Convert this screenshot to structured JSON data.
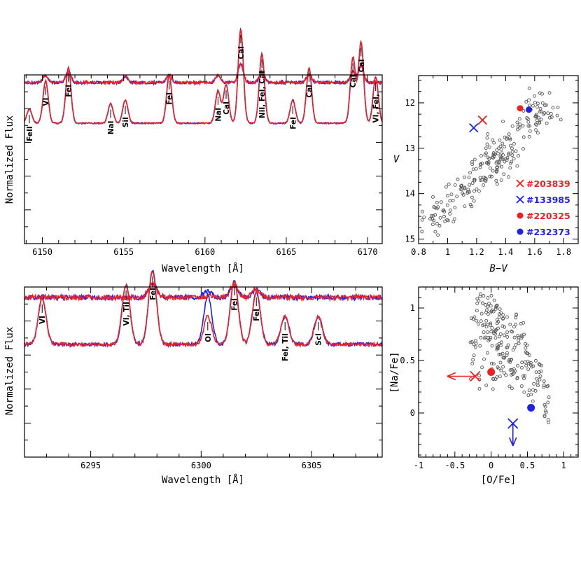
{
  "chart_data": [
    {
      "id": "spectrum-top",
      "type": "line",
      "xlabel": "Wavelength [Å]",
      "ylabel": "Normalized Flux",
      "xlim": [
        6148.9,
        6170.9
      ],
      "xticks": [
        6150,
        6155,
        6160,
        6165,
        6170
      ],
      "series": [
        {
          "color": "#2020ee",
          "role": "spectrum"
        },
        {
          "color": "#ee2020",
          "role": "spectrum"
        }
      ],
      "difference_features": [
        {
          "x": 6150.2,
          "d": 0.35
        },
        {
          "x": 6151.6,
          "d": 0.5
        },
        {
          "x": 6155.1,
          "d": 0.3
        },
        {
          "x": 6157.8,
          "d": 0.35
        },
        {
          "x": 6160.8,
          "d": 0.35
        },
        {
          "x": 6162.2,
          "d": 0.9
        },
        {
          "x": 6163.5,
          "d": 0.5
        },
        {
          "x": 6166.4,
          "d": 0.4
        },
        {
          "x": 6169.1,
          "d": 0.5
        },
        {
          "x": 6169.6,
          "d": 0.8
        }
      ],
      "lines": [
        {
          "x": 6149.2,
          "d": 0.18,
          "label": "FeII"
        },
        {
          "x": 6150.2,
          "d": 0.55,
          "label": "VI"
        },
        {
          "x": 6151.6,
          "d": 0.72,
          "label": "FeI"
        },
        {
          "x": 6154.2,
          "d": 0.25,
          "label": "NaI"
        },
        {
          "x": 6155.1,
          "d": 0.3,
          "label": "SiI"
        },
        {
          "x": 6157.8,
          "d": 0.62,
          "label": "FeI"
        },
        {
          "x": 6160.8,
          "d": 0.42,
          "label": "NaI"
        },
        {
          "x": 6161.3,
          "d": 0.5,
          "label": "CaI"
        },
        {
          "x": 6162.2,
          "d": 1.22,
          "label": "CaI"
        },
        {
          "x": 6163.5,
          "d": 0.9,
          "label": "NiI, FeI, CaI"
        },
        {
          "x": 6165.4,
          "d": 0.3,
          "label": "FeI"
        },
        {
          "x": 6166.4,
          "d": 0.72,
          "label": "CaI"
        },
        {
          "x": 6169.1,
          "d": 0.85,
          "label": "CaI"
        },
        {
          "x": 6169.6,
          "d": 1.05,
          "label": "CaI"
        },
        {
          "x": 6170.5,
          "d": 0.6,
          "label": "VI, FeI,"
        }
      ]
    },
    {
      "id": "spectrum-bottom",
      "type": "line",
      "xlabel": "Wavelength [Å]",
      "ylabel": "Normalized Flux",
      "xlim": [
        6292.0,
        6308.2
      ],
      "xticks": [
        6295,
        6300,
        6305
      ],
      "series": [
        {
          "color": "#2020ee",
          "role": "spectrum"
        },
        {
          "color": "#ee2020",
          "role": "spectrum"
        }
      ],
      "difference_features": [
        {
          "x": 6297.8,
          "d": 0.65,
          "both": true
        },
        {
          "x": 6300.3,
          "d": 0.35,
          "blueOnly": true
        },
        {
          "x": 6301.5,
          "d": 0.6,
          "both": true
        },
        {
          "x": 6302.5,
          "d": 0.4,
          "both": true
        }
      ],
      "lines": [
        {
          "x": 6292.8,
          "d": 0.65,
          "label": "VI"
        },
        {
          "x": 6296.6,
          "d": 0.85,
          "label": "VI, TiI"
        },
        {
          "x": 6297.8,
          "d": 1.05,
          "label": "FeI"
        },
        {
          "x": 6300.3,
          "d": 0.4,
          "label": "OI",
          "blueExtra": 0.3
        },
        {
          "x": 6301.5,
          "d": 0.9,
          "label": "FeI"
        },
        {
          "x": 6302.5,
          "d": 0.75,
          "label": "FeI"
        },
        {
          "x": 6303.8,
          "d": 0.4,
          "label": "FeI, TiI"
        },
        {
          "x": 6305.3,
          "d": 0.4,
          "label": "ScI"
        }
      ]
    },
    {
      "id": "cmd",
      "type": "scatter",
      "xlabel": "B−V",
      "ylabel": "V",
      "xlim": [
        0.8,
        1.9
      ],
      "ylim": [
        15.1,
        11.4
      ],
      "xticks": [
        0.8,
        1,
        1.2,
        1.4,
        1.6,
        1.8
      ],
      "yticks": [
        12,
        13,
        14,
        15
      ],
      "legend": [
        {
          "marker": "cross",
          "color": "#ee2020",
          "label": "#203839"
        },
        {
          "marker": "cross",
          "color": "#2020ee",
          "label": "#133985"
        },
        {
          "marker": "dot",
          "color": "#ee2020",
          "label": "#220325"
        },
        {
          "marker": "dot",
          "color": "#2020ee",
          "label": "#232373"
        }
      ],
      "highlighted": [
        {
          "marker": "cross",
          "color": "#ee2020",
          "x": 1.24,
          "y": 12.38
        },
        {
          "marker": "cross",
          "color": "#2020ee",
          "x": 1.18,
          "y": 12.55
        },
        {
          "marker": "dot",
          "color": "#ee2020",
          "x": 1.5,
          "y": 12.12
        },
        {
          "marker": "dot",
          "color": "#2020ee",
          "x": 1.56,
          "y": 12.15
        }
      ]
    },
    {
      "id": "nao",
      "type": "scatter",
      "xlabel": "[O/Fe]",
      "ylabel": "[Na/Fe]",
      "xlim": [
        -1,
        1.2
      ],
      "ylim": [
        -0.42,
        1.2
      ],
      "xticks": [
        -1,
        -0.5,
        0,
        0.5,
        1
      ],
      "yticks": [
        0,
        0.5,
        1
      ],
      "highlighted": [
        {
          "marker": "cross",
          "color": "#ee2020",
          "x": -0.22,
          "y": 0.35,
          "upper_limit_arrow": "left"
        },
        {
          "marker": "cross",
          "color": "#2020ee",
          "x": 0.3,
          "y": -0.1,
          "upper_limit_arrow": "down"
        },
        {
          "marker": "dot",
          "color": "#ee2020",
          "x": 0.0,
          "y": 0.39
        },
        {
          "marker": "dot",
          "color": "#2020ee",
          "x": 0.55,
          "y": 0.05
        }
      ]
    }
  ]
}
